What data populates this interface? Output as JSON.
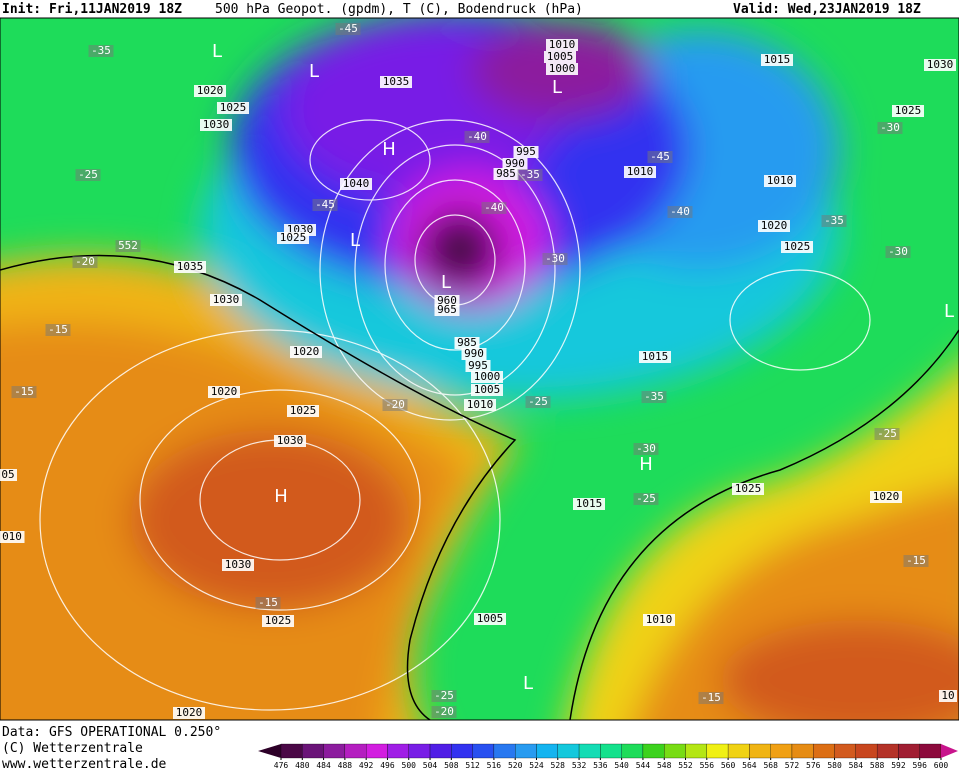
{
  "header": {
    "init": "Init: Fri,11JAN2019 18Z",
    "title": "500 hPa Geopot. (gpdm), T (C), Bodendruck (hPa)",
    "valid": "Valid: Wed,23JAN2019 18Z"
  },
  "footer": {
    "data": "Data: GFS OPERATIONAL 0.250°",
    "copyright": "(C) Wetterzentrale",
    "url": "www.wetterzentrale.de"
  },
  "map": {
    "isobar_labels": [
      "1020",
      "1025",
      "1030",
      "1035",
      "1040",
      "1030",
      "1025",
      "1035",
      "1030",
      "1020",
      "1020",
      "1025",
      "1030",
      "1030",
      "1025",
      "1020",
      "1010",
      "1005",
      "1000",
      "995",
      "990",
      "985",
      "960",
      "965",
      "985",
      "990",
      "995",
      "1000",
      "1005",
      "1010",
      "1010",
      "1015",
      "1030",
      "1025",
      "1010",
      "1020",
      "1025",
      "1015",
      "1015",
      "1025",
      "1020",
      "1005",
      "1010",
      "010",
      "05",
      "10"
    ],
    "temperature_labels": [
      "-45",
      "-35",
      "-25",
      "-20",
      "-15",
      "-15",
      "-40",
      "-45",
      "-35",
      "-40",
      "-30",
      "-45",
      "-40",
      "-35",
      "-30",
      "-30",
      "-20",
      "-25",
      "-35",
      "-30",
      "-25",
      "-25",
      "-15",
      "-15",
      "-15",
      "-25",
      "-20",
      "552"
    ],
    "pressure_centers": [
      "L",
      "L",
      "L",
      "H",
      "L",
      "L",
      "H",
      "H",
      "L",
      "L"
    ]
  },
  "colorbar": {
    "ticks": [
      476,
      480,
      484,
      488,
      492,
      496,
      500,
      504,
      508,
      512,
      516,
      520,
      524,
      528,
      532,
      536,
      540,
      544,
      548,
      552,
      556,
      560,
      564,
      568,
      572,
      576,
      580,
      584,
      588,
      592,
      596,
      600
    ],
    "colors": [
      "#2d0028",
      "#4a0846",
      "#6a1478",
      "#8c1c9e",
      "#b41ec0",
      "#d21ee0",
      "#a01ee6",
      "#781ee6",
      "#501ee6",
      "#3232f0",
      "#2850f0",
      "#2878f0",
      "#289bf0",
      "#14b4f0",
      "#14c8dc",
      "#14dcb4",
      "#14e18c",
      "#1edc5a",
      "#3cd21e",
      "#78dc14",
      "#b4e614",
      "#f0f014",
      "#f0d214",
      "#f0b414",
      "#f0a014",
      "#e68c14",
      "#dc6e14",
      "#d25a1e",
      "#c8461e",
      "#b43228",
      "#a01e32",
      "#8c0a3c",
      "#c8148c"
    ]
  }
}
